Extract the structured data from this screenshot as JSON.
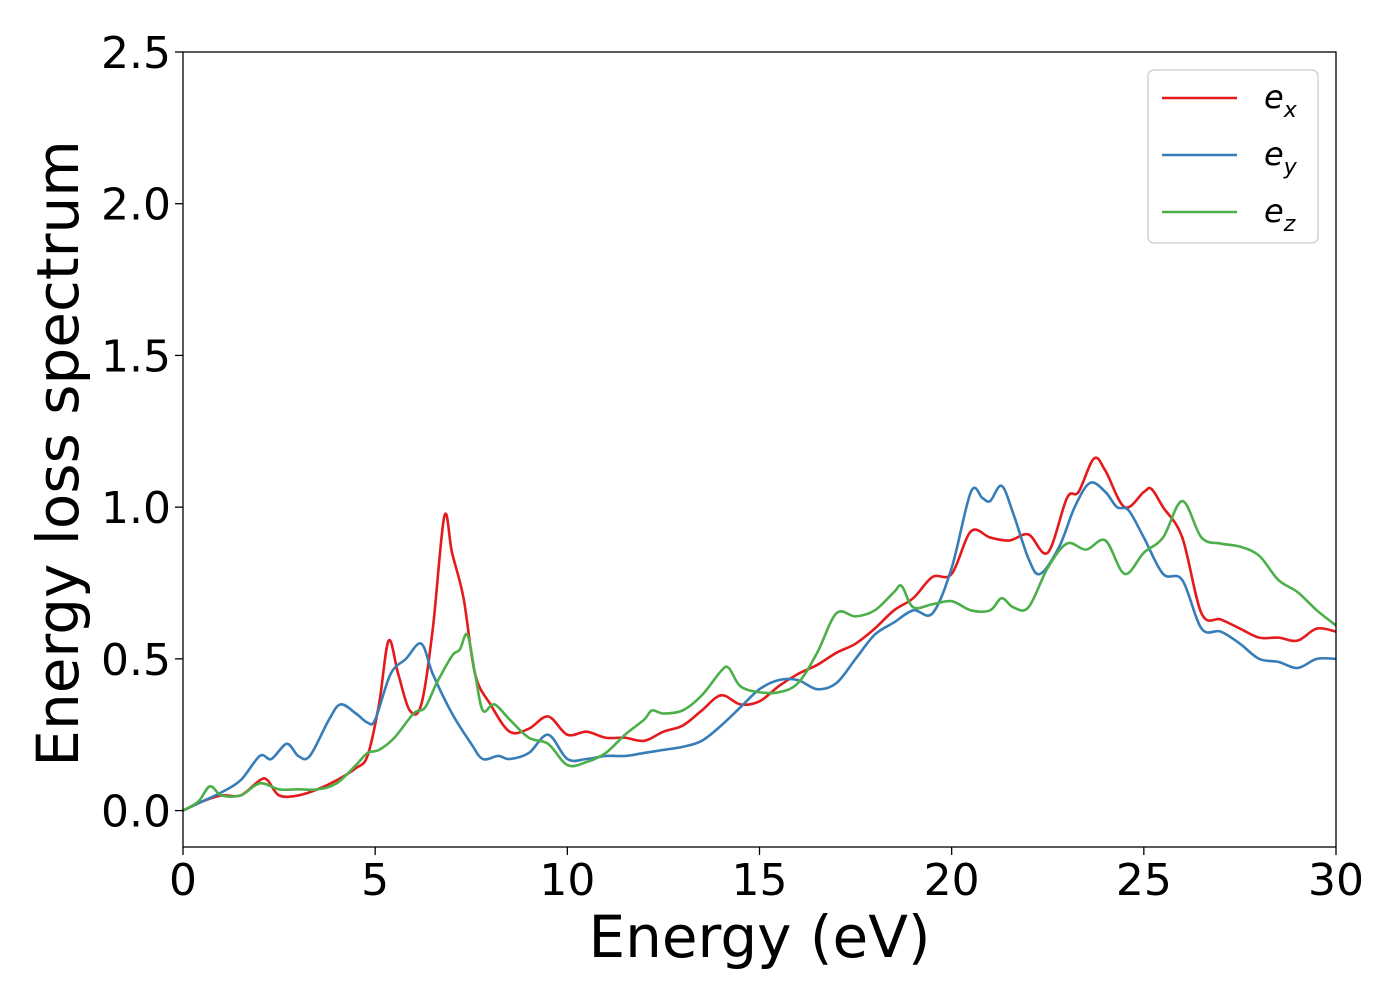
{
  "chart_data": {
    "type": "line",
    "title": "",
    "xlabel": "Energy (eV)",
    "ylabel": "Energy loss spectrum",
    "xlim": [
      0,
      30
    ],
    "ylim": [
      -0.12,
      2.5
    ],
    "xticks": [
      "0",
      "5",
      "10",
      "15",
      "20",
      "25",
      "30"
    ],
    "yticks": [
      "0.0",
      "0.5",
      "1.0",
      "1.5",
      "2.0",
      "2.5"
    ],
    "grid": false,
    "legend_position": "top-right",
    "series": [
      {
        "name": "e",
        "subscript": "x",
        "color": "#e41a1c",
        "points": [
          [
            0,
            0
          ],
          [
            0.5,
            0.03
          ],
          [
            1,
            0.05
          ],
          [
            1.5,
            0.05
          ],
          [
            2,
            0.1
          ],
          [
            2.2,
            0.1
          ],
          [
            2.5,
            0.05
          ],
          [
            3,
            0.05
          ],
          [
            3.5,
            0.07
          ],
          [
            4,
            0.1
          ],
          [
            4.5,
            0.14
          ],
          [
            4.8,
            0.18
          ],
          [
            5.1,
            0.35
          ],
          [
            5.35,
            0.56
          ],
          [
            5.6,
            0.45
          ],
          [
            5.9,
            0.33
          ],
          [
            6.2,
            0.35
          ],
          [
            6.5,
            0.6
          ],
          [
            6.8,
            0.97
          ],
          [
            7,
            0.85
          ],
          [
            7.3,
            0.7
          ],
          [
            7.6,
            0.45
          ],
          [
            8,
            0.35
          ],
          [
            8.5,
            0.26
          ],
          [
            9,
            0.27
          ],
          [
            9.5,
            0.31
          ],
          [
            10,
            0.25
          ],
          [
            10.5,
            0.26
          ],
          [
            11,
            0.24
          ],
          [
            11.5,
            0.24
          ],
          [
            12,
            0.23
          ],
          [
            12.5,
            0.26
          ],
          [
            13,
            0.28
          ],
          [
            13.5,
            0.33
          ],
          [
            14,
            0.38
          ],
          [
            14.5,
            0.35
          ],
          [
            15,
            0.36
          ],
          [
            15.5,
            0.41
          ],
          [
            16,
            0.45
          ],
          [
            16.5,
            0.48
          ],
          [
            17,
            0.52
          ],
          [
            17.5,
            0.55
          ],
          [
            18,
            0.6
          ],
          [
            18.5,
            0.66
          ],
          [
            19,
            0.7
          ],
          [
            19.5,
            0.77
          ],
          [
            20,
            0.78
          ],
          [
            20.5,
            0.92
          ],
          [
            21,
            0.9
          ],
          [
            21.5,
            0.89
          ],
          [
            22,
            0.91
          ],
          [
            22.5,
            0.85
          ],
          [
            23,
            1.03
          ],
          [
            23.3,
            1.05
          ],
          [
            23.7,
            1.16
          ],
          [
            24,
            1.12
          ],
          [
            24.5,
            1.0
          ],
          [
            25,
            1.05
          ],
          [
            25.2,
            1.06
          ],
          [
            25.5,
            1.0
          ],
          [
            26,
            0.9
          ],
          [
            26.5,
            0.65
          ],
          [
            27,
            0.63
          ],
          [
            27.5,
            0.6
          ],
          [
            28,
            0.57
          ],
          [
            28.5,
            0.57
          ],
          [
            29,
            0.56
          ],
          [
            29.5,
            0.6
          ],
          [
            30,
            0.59
          ]
        ]
      },
      {
        "name": "e",
        "subscript": "y",
        "color": "#377eb8",
        "points": [
          [
            0,
            0
          ],
          [
            0.5,
            0.03
          ],
          [
            1,
            0.06
          ],
          [
            1.5,
            0.1
          ],
          [
            2,
            0.18
          ],
          [
            2.3,
            0.17
          ],
          [
            2.7,
            0.22
          ],
          [
            3,
            0.18
          ],
          [
            3.3,
            0.18
          ],
          [
            3.8,
            0.3
          ],
          [
            4.1,
            0.35
          ],
          [
            4.5,
            0.32
          ],
          [
            4.8,
            0.29
          ],
          [
            5,
            0.3
          ],
          [
            5.4,
            0.45
          ],
          [
            5.8,
            0.5
          ],
          [
            6.2,
            0.55
          ],
          [
            6.5,
            0.45
          ],
          [
            7,
            0.32
          ],
          [
            7.5,
            0.22
          ],
          [
            7.8,
            0.17
          ],
          [
            8.2,
            0.18
          ],
          [
            8.5,
            0.17
          ],
          [
            9,
            0.19
          ],
          [
            9.5,
            0.25
          ],
          [
            10,
            0.17
          ],
          [
            10.5,
            0.17
          ],
          [
            11,
            0.18
          ],
          [
            11.5,
            0.18
          ],
          [
            12,
            0.19
          ],
          [
            12.5,
            0.2
          ],
          [
            13,
            0.21
          ],
          [
            13.5,
            0.23
          ],
          [
            14,
            0.28
          ],
          [
            14.5,
            0.34
          ],
          [
            15,
            0.4
          ],
          [
            15.5,
            0.43
          ],
          [
            16,
            0.43
          ],
          [
            16.5,
            0.4
          ],
          [
            17,
            0.42
          ],
          [
            17.5,
            0.5
          ],
          [
            18,
            0.58
          ],
          [
            18.5,
            0.62
          ],
          [
            19,
            0.66
          ],
          [
            19.5,
            0.65
          ],
          [
            20,
            0.8
          ],
          [
            20.5,
            1.05
          ],
          [
            20.8,
            1.03
          ],
          [
            21,
            1.02
          ],
          [
            21.3,
            1.07
          ],
          [
            21.6,
            0.98
          ],
          [
            22,
            0.83
          ],
          [
            22.3,
            0.78
          ],
          [
            22.8,
            0.87
          ],
          [
            23.2,
            1.0
          ],
          [
            23.6,
            1.08
          ],
          [
            24,
            1.05
          ],
          [
            24.3,
            1.0
          ],
          [
            24.6,
            0.99
          ],
          [
            25,
            0.9
          ],
          [
            25.5,
            0.78
          ],
          [
            26,
            0.76
          ],
          [
            26.5,
            0.6
          ],
          [
            27,
            0.59
          ],
          [
            27.5,
            0.55
          ],
          [
            28,
            0.5
          ],
          [
            28.5,
            0.49
          ],
          [
            29,
            0.47
          ],
          [
            29.5,
            0.5
          ],
          [
            30,
            0.5
          ]
        ]
      },
      {
        "name": "e",
        "subscript": "z",
        "color": "#4daf4a",
        "points": [
          [
            0,
            0
          ],
          [
            0.4,
            0.03
          ],
          [
            0.7,
            0.08
          ],
          [
            1,
            0.05
          ],
          [
            1.5,
            0.05
          ],
          [
            2,
            0.09
          ],
          [
            2.5,
            0.07
          ],
          [
            3,
            0.07
          ],
          [
            3.5,
            0.07
          ],
          [
            4,
            0.09
          ],
          [
            4.5,
            0.15
          ],
          [
            4.8,
            0.19
          ],
          [
            5.1,
            0.2
          ],
          [
            5.5,
            0.24
          ],
          [
            6,
            0.32
          ],
          [
            6.3,
            0.34
          ],
          [
            6.6,
            0.42
          ],
          [
            7,
            0.51
          ],
          [
            7.2,
            0.53
          ],
          [
            7.4,
            0.58
          ],
          [
            7.6,
            0.45
          ],
          [
            7.8,
            0.33
          ],
          [
            8.1,
            0.35
          ],
          [
            8.5,
            0.3
          ],
          [
            9,
            0.24
          ],
          [
            9.5,
            0.22
          ],
          [
            10,
            0.15
          ],
          [
            10.5,
            0.16
          ],
          [
            11,
            0.19
          ],
          [
            11.5,
            0.25
          ],
          [
            12,
            0.3
          ],
          [
            12.2,
            0.33
          ],
          [
            12.5,
            0.32
          ],
          [
            13,
            0.33
          ],
          [
            13.5,
            0.38
          ],
          [
            14,
            0.46
          ],
          [
            14.2,
            0.47
          ],
          [
            14.5,
            0.41
          ],
          [
            15,
            0.39
          ],
          [
            15.5,
            0.39
          ],
          [
            16,
            0.42
          ],
          [
            16.5,
            0.52
          ],
          [
            17,
            0.65
          ],
          [
            17.5,
            0.64
          ],
          [
            18,
            0.66
          ],
          [
            18.5,
            0.72
          ],
          [
            18.7,
            0.74
          ],
          [
            19,
            0.67
          ],
          [
            19.5,
            0.68
          ],
          [
            20,
            0.69
          ],
          [
            20.5,
            0.66
          ],
          [
            21,
            0.66
          ],
          [
            21.3,
            0.7
          ],
          [
            21.6,
            0.67
          ],
          [
            22,
            0.67
          ],
          [
            22.5,
            0.8
          ],
          [
            23,
            0.88
          ],
          [
            23.5,
            0.86
          ],
          [
            24,
            0.89
          ],
          [
            24.5,
            0.78
          ],
          [
            25,
            0.85
          ],
          [
            25.5,
            0.9
          ],
          [
            26,
            1.02
          ],
          [
            26.5,
            0.9
          ],
          [
            27,
            0.88
          ],
          [
            27.5,
            0.87
          ],
          [
            28,
            0.84
          ],
          [
            28.5,
            0.76
          ],
          [
            29,
            0.72
          ],
          [
            29.5,
            0.66
          ],
          [
            30,
            0.61
          ]
        ]
      }
    ]
  }
}
